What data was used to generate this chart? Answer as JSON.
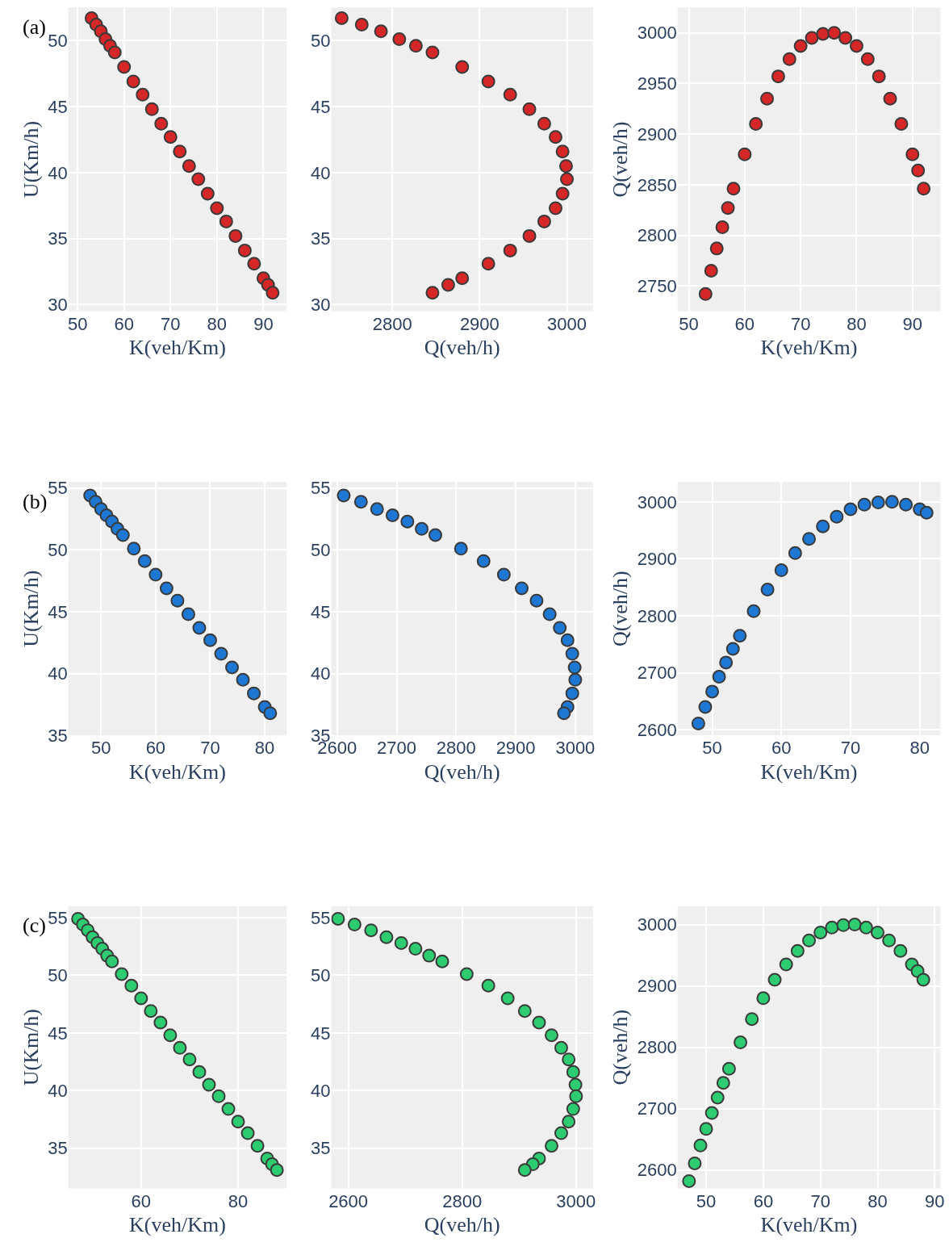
{
  "chart_data": [
    {
      "type": "scatter",
      "xlabel": "K(veh/Km)",
      "ylabel": "U(Km/h)",
      "color": "#d62728",
      "marker": "circle",
      "grid": true,
      "annotations": [
        "(a)"
      ],
      "xlim": [
        48,
        95
      ],
      "xticks": [
        50,
        60,
        70,
        80,
        90
      ],
      "ylim": [
        29.5,
        52.5
      ],
      "yticks": [
        30,
        35,
        40,
        45,
        50
      ],
      "x": [
        53,
        54,
        55,
        56,
        57,
        58,
        60,
        62,
        64,
        66,
        68,
        70,
        72,
        74,
        76,
        78,
        80,
        82,
        84,
        86,
        88,
        90,
        91,
        92
      ],
      "values": [
        51.7,
        51.2,
        50.7,
        50.1,
        49.6,
        49.1,
        48.0,
        46.9,
        45.9,
        44.8,
        43.7,
        42.7,
        41.6,
        40.5,
        39.5,
        38.4,
        37.3,
        36.3,
        35.2,
        34.1,
        33.1,
        32.0,
        31.5,
        30.9
      ]
    },
    {
      "type": "scatter",
      "xlabel": "Q(veh/h)",
      "color": "#d62728",
      "marker": "circle",
      "grid": true,
      "xlim": [
        2730,
        3030
      ],
      "xticks": [
        2800,
        2900,
        3000
      ],
      "ylim": [
        29.5,
        52.5
      ],
      "yticks": [
        30,
        35,
        40,
        45,
        50
      ],
      "x": [
        2742,
        2765,
        2787,
        2808,
        2827,
        2846,
        2880,
        2910,
        2935,
        2957,
        2974,
        2987,
        2995,
        2999,
        3000,
        2995,
        2987,
        2974,
        2957,
        2935,
        2910,
        2880,
        2864,
        2846
      ],
      "values": [
        51.7,
        51.2,
        50.7,
        50.1,
        49.6,
        49.1,
        48.0,
        46.9,
        45.9,
        44.8,
        43.7,
        42.7,
        41.6,
        40.5,
        39.5,
        38.4,
        37.3,
        36.3,
        35.2,
        34.1,
        33.1,
        32.0,
        31.5,
        30.9
      ]
    },
    {
      "type": "scatter",
      "xlabel": "K(veh/Km)",
      "ylabel": "Q(veh/h)",
      "color": "#d62728",
      "marker": "circle",
      "grid": true,
      "xlim": [
        48,
        95
      ],
      "xticks": [
        50,
        60,
        70,
        80,
        90
      ],
      "ylim": [
        2725,
        3025
      ],
      "yticks": [
        2750,
        2800,
        2850,
        2900,
        2950,
        3000
      ],
      "x": [
        53,
        54,
        55,
        56,
        57,
        58,
        60,
        62,
        64,
        66,
        68,
        70,
        72,
        74,
        76,
        78,
        80,
        82,
        84,
        86,
        88,
        90,
        91,
        92
      ],
      "values": [
        2742,
        2765,
        2787,
        2808,
        2827,
        2846,
        2880,
        2910,
        2935,
        2957,
        2974,
        2987,
        2995,
        2999,
        3000,
        2995,
        2987,
        2974,
        2957,
        2935,
        2910,
        2880,
        2864,
        2846
      ]
    },
    {
      "type": "scatter",
      "xlabel": "K(veh/Km)",
      "ylabel": "U(Km/h)",
      "color": "#1f77d4",
      "marker": "circle",
      "grid": true,
      "annotations": [
        "(b)"
      ],
      "xlim": [
        44,
        84
      ],
      "xticks": [
        50,
        60,
        70,
        80
      ],
      "ylim": [
        35,
        55.5
      ],
      "yticks": [
        35,
        40,
        45,
        50,
        55
      ],
      "x": [
        48,
        49,
        50,
        51,
        52,
        53,
        54,
        56,
        58,
        60,
        62,
        64,
        66,
        68,
        70,
        72,
        74,
        76,
        78,
        80,
        81
      ],
      "values": [
        54.4,
        53.9,
        53.3,
        52.8,
        52.3,
        51.7,
        51.2,
        50.1,
        49.1,
        48.0,
        46.9,
        45.9,
        44.8,
        43.7,
        42.7,
        41.6,
        40.5,
        39.5,
        38.4,
        37.3,
        36.8
      ]
    },
    {
      "type": "scatter",
      "xlabel": "Q(veh/h)",
      "color": "#1f77d4",
      "marker": "circle",
      "grid": true,
      "xlim": [
        2590,
        3030
      ],
      "xticks": [
        2600,
        2700,
        2800,
        2900,
        3000
      ],
      "ylim": [
        35,
        55.5
      ],
      "yticks": [
        35,
        40,
        45,
        50,
        55
      ],
      "x": [
        2611,
        2640,
        2667,
        2693,
        2718,
        2742,
        2765,
        2808,
        2846,
        2880,
        2910,
        2935,
        2957,
        2974,
        2987,
        2995,
        2999,
        3000,
        2995,
        2987,
        2981
      ],
      "values": [
        54.4,
        53.9,
        53.3,
        52.8,
        52.3,
        51.7,
        51.2,
        50.1,
        49.1,
        48.0,
        46.9,
        45.9,
        44.8,
        43.7,
        42.7,
        41.6,
        40.5,
        39.5,
        38.4,
        37.3,
        36.8
      ]
    },
    {
      "type": "scatter",
      "xlabel": "K(veh/Km)",
      "ylabel": "Q(veh/h)",
      "color": "#1f77d4",
      "marker": "circle",
      "grid": true,
      "xlim": [
        45,
        83
      ],
      "xticks": [
        50,
        60,
        70,
        80
      ],
      "ylim": [
        2590,
        3035
      ],
      "yticks": [
        2600,
        2700,
        2800,
        2900,
        3000
      ],
      "x": [
        48,
        49,
        50,
        51,
        52,
        53,
        54,
        56,
        58,
        60,
        62,
        64,
        66,
        68,
        70,
        72,
        74,
        76,
        78,
        80,
        81
      ],
      "values": [
        2611,
        2640,
        2667,
        2693,
        2718,
        2742,
        2765,
        2808,
        2846,
        2880,
        2910,
        2935,
        2957,
        2974,
        2987,
        2995,
        2999,
        3000,
        2995,
        2987,
        2981
      ]
    },
    {
      "type": "scatter",
      "xlabel": "K(veh/Km)",
      "ylabel": "U(Km/h)",
      "color": "#2ecc71",
      "marker": "circle",
      "grid": true,
      "annotations": [
        "(c)"
      ],
      "xlim": [
        45,
        90
      ],
      "xticks": [
        60,
        80
      ],
      "ylim": [
        31.5,
        56
      ],
      "yticks": [
        35,
        40,
        45,
        50,
        55
      ],
      "x": [
        47,
        48,
        49,
        50,
        51,
        52,
        53,
        54,
        56,
        58,
        60,
        62,
        64,
        66,
        68,
        70,
        72,
        74,
        76,
        78,
        80,
        82,
        84,
        86,
        87,
        88
      ],
      "values": [
        54.9,
        54.4,
        53.9,
        53.3,
        52.8,
        52.3,
        51.7,
        51.2,
        50.1,
        49.1,
        48.0,
        46.9,
        45.9,
        44.8,
        43.7,
        42.7,
        41.6,
        40.5,
        39.5,
        38.4,
        37.3,
        36.3,
        35.2,
        34.1,
        33.6,
        33.1
      ]
    },
    {
      "type": "scatter",
      "xlabel": "Q(veh/h)",
      "color": "#2ecc71",
      "marker": "circle",
      "grid": true,
      "xlim": [
        2570,
        3030
      ],
      "xticks": [
        2600,
        2800,
        3000
      ],
      "ylim": [
        31.5,
        56
      ],
      "yticks": [
        35,
        40,
        45,
        50,
        55
      ],
      "x": [
        2582,
        2611,
        2640,
        2667,
        2693,
        2718,
        2742,
        2765,
        2808,
        2846,
        2880,
        2910,
        2935,
        2957,
        2974,
        2987,
        2995,
        2999,
        3000,
        2995,
        2987,
        2974,
        2957,
        2935,
        2924,
        2910
      ],
      "values": [
        54.9,
        54.4,
        53.9,
        53.3,
        52.8,
        52.3,
        51.7,
        51.2,
        50.1,
        49.1,
        48.0,
        46.9,
        45.9,
        44.8,
        43.7,
        42.7,
        41.6,
        40.5,
        39.5,
        38.4,
        37.3,
        36.3,
        35.2,
        34.1,
        33.6,
        33.1
      ]
    },
    {
      "type": "scatter",
      "xlabel": "K(veh/Km)",
      "ylabel": "Q(veh/h)",
      "color": "#2ecc71",
      "marker": "circle",
      "grid": true,
      "xlim": [
        45,
        91
      ],
      "xticks": [
        50,
        60,
        70,
        80,
        90
      ],
      "ylim": [
        2570,
        3030
      ],
      "yticks": [
        2600,
        2700,
        2800,
        2900,
        3000
      ],
      "x": [
        47,
        48,
        49,
        50,
        51,
        52,
        53,
        54,
        56,
        58,
        60,
        62,
        64,
        66,
        68,
        70,
        72,
        74,
        76,
        78,
        80,
        82,
        84,
        86,
        87,
        88
      ],
      "values": [
        2582,
        2611,
        2640,
        2667,
        2693,
        2718,
        2742,
        2765,
        2808,
        2846,
        2880,
        2910,
        2935,
        2957,
        2974,
        2987,
        2995,
        2999,
        3000,
        2995,
        2987,
        2974,
        2957,
        2935,
        2924,
        2910
      ]
    }
  ]
}
